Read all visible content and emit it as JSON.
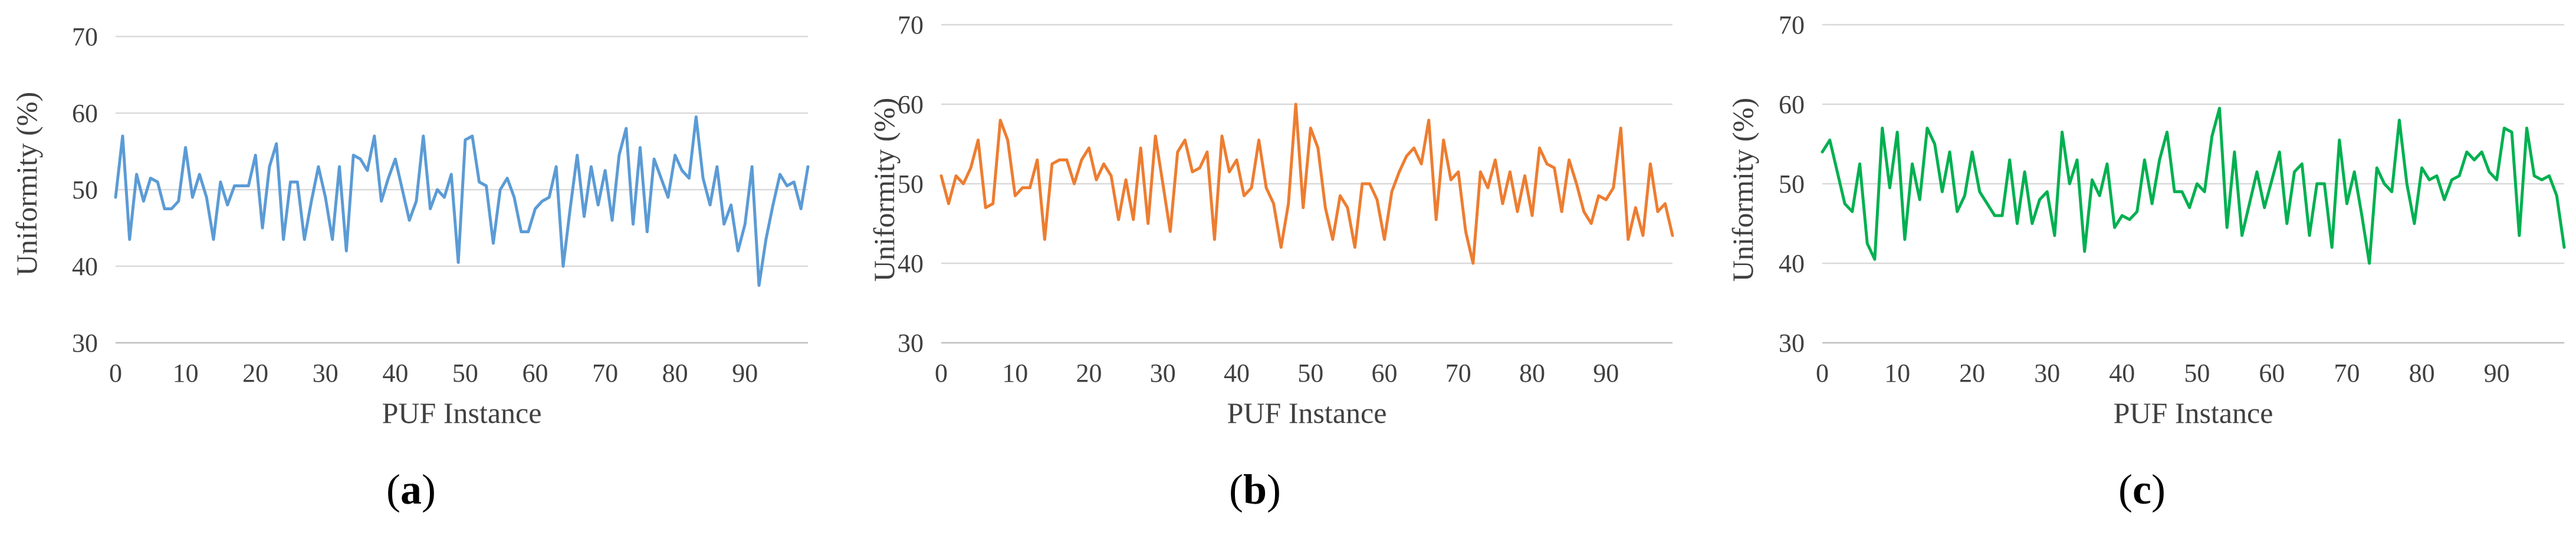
{
  "panels": [
    {
      "label_open": "(",
      "label_letter": "a",
      "label_close": ")"
    },
    {
      "label_open": "(",
      "label_letter": "b",
      "label_close": ")"
    },
    {
      "label_open": "(",
      "label_letter": "c",
      "label_close": ")"
    }
  ],
  "chart_data": [
    {
      "type": "line",
      "xlabel": "PUF Instance",
      "ylabel": "Uniformity (%)",
      "xlim": [
        0,
        99
      ],
      "ylim": [
        30,
        70
      ],
      "xticks": [
        0,
        10,
        20,
        30,
        40,
        50,
        60,
        70,
        80,
        90
      ],
      "yticks": [
        30,
        40,
        50,
        60,
        70
      ],
      "grid": true,
      "color": "#5b9bd5",
      "x_start": 0,
      "values": [
        49,
        57,
        43.5,
        52,
        48.5,
        51.5,
        51,
        47.5,
        47.5,
        48.5,
        55.5,
        49,
        52,
        49,
        43.5,
        51,
        48,
        50.5,
        50.5,
        50.5,
        54.5,
        45,
        53,
        56,
        43.5,
        51,
        51,
        43.5,
        48.5,
        53,
        49,
        43.5,
        53,
        42,
        54.5,
        54,
        52.5,
        57,
        48.5,
        51.5,
        54,
        50,
        46,
        48.5,
        57,
        47.5,
        50,
        49,
        52,
        40.5,
        56.5,
        57,
        51,
        50.5,
        43,
        50,
        51.5,
        49,
        44.5,
        44.5,
        47.5,
        48.5,
        49,
        53,
        40,
        47.5,
        54.5,
        46.5,
        53,
        48,
        52.5,
        46,
        54.5,
        58,
        45.5,
        55.5,
        44.5,
        54,
        51.5,
        49,
        54.5,
        52.5,
        51.5,
        59.5,
        51.5,
        48,
        53,
        45.5,
        48,
        42,
        45.5,
        53,
        37.5,
        43.5,
        48,
        52,
        50.5,
        51,
        47.5,
        53
      ]
    },
    {
      "type": "line",
      "xlabel": "PUF Instance",
      "ylabel": "Uniformity (%)",
      "xlim": [
        0,
        99
      ],
      "ylim": [
        30,
        70
      ],
      "xticks": [
        0,
        10,
        20,
        30,
        40,
        50,
        60,
        70,
        80,
        90
      ],
      "yticks": [
        30,
        40,
        50,
        60,
        70
      ],
      "grid": true,
      "color": "#ed7d31",
      "x_start": 0,
      "values": [
        51,
        47.5,
        51,
        50,
        52,
        55.5,
        47,
        47.5,
        58,
        55.5,
        48.5,
        49.5,
        49.5,
        53,
        43,
        52.5,
        53,
        53,
        50,
        53,
        54.5,
        50.5,
        52.5,
        51,
        45.5,
        50.5,
        45.5,
        54.5,
        45,
        56,
        50,
        44,
        54,
        55.5,
        51.5,
        52,
        54,
        43,
        56,
        51.5,
        53,
        48.5,
        49.5,
        55.5,
        49.5,
        47.5,
        42,
        47.5,
        60,
        47,
        57,
        54.5,
        47,
        43,
        48.5,
        47,
        42,
        50,
        50,
        48,
        43,
        49,
        51.5,
        53.5,
        54.5,
        52.5,
        58,
        45.5,
        55.5,
        50.5,
        51.5,
        44,
        40,
        51.5,
        49.5,
        53,
        47.5,
        51.5,
        46.5,
        51,
        46,
        54.5,
        52.5,
        52,
        46.5,
        53,
        50,
        46.5,
        45,
        48.5,
        48,
        49.5,
        57,
        43,
        47,
        43.5,
        52.5,
        46.5,
        47.5,
        43.5
      ]
    },
    {
      "type": "line",
      "xlabel": "PUF Instance",
      "ylabel": "Uniformity (%)",
      "xlim": [
        0,
        99
      ],
      "ylim": [
        30,
        70
      ],
      "xticks": [
        0,
        10,
        20,
        30,
        40,
        50,
        60,
        70,
        80,
        90
      ],
      "yticks": [
        30,
        40,
        50,
        60,
        70
      ],
      "grid": true,
      "color": "#00b050",
      "x_start": 0,
      "values": [
        54,
        55.5,
        51.5,
        47.5,
        46.5,
        52.5,
        42.5,
        40.5,
        57,
        49.5,
        56.5,
        43,
        52.5,
        48,
        57,
        55,
        49,
        54,
        46.5,
        48.5,
        54,
        49,
        47.5,
        46,
        46,
        53,
        45,
        51.5,
        45,
        48,
        49,
        43.5,
        56.5,
        50,
        53,
        41.5,
        50.5,
        48.5,
        52.5,
        44.5,
        46,
        45.5,
        46.5,
        53,
        47.5,
        53,
        56.5,
        49,
        49,
        47,
        50,
        49,
        56,
        59.5,
        44.5,
        54,
        43.5,
        47.5,
        51.5,
        47,
        50.5,
        54,
        45,
        51.5,
        52.5,
        43.5,
        50,
        50,
        42,
        55.5,
        47.5,
        51.5,
        46,
        40,
        52,
        50,
        49,
        58,
        50,
        45,
        52,
        50.5,
        51,
        48,
        50.5,
        51,
        54,
        53,
        54,
        51.5,
        50.5,
        57,
        56.5,
        43.5,
        57,
        51,
        50.5,
        51,
        48.5,
        42
      ]
    }
  ]
}
